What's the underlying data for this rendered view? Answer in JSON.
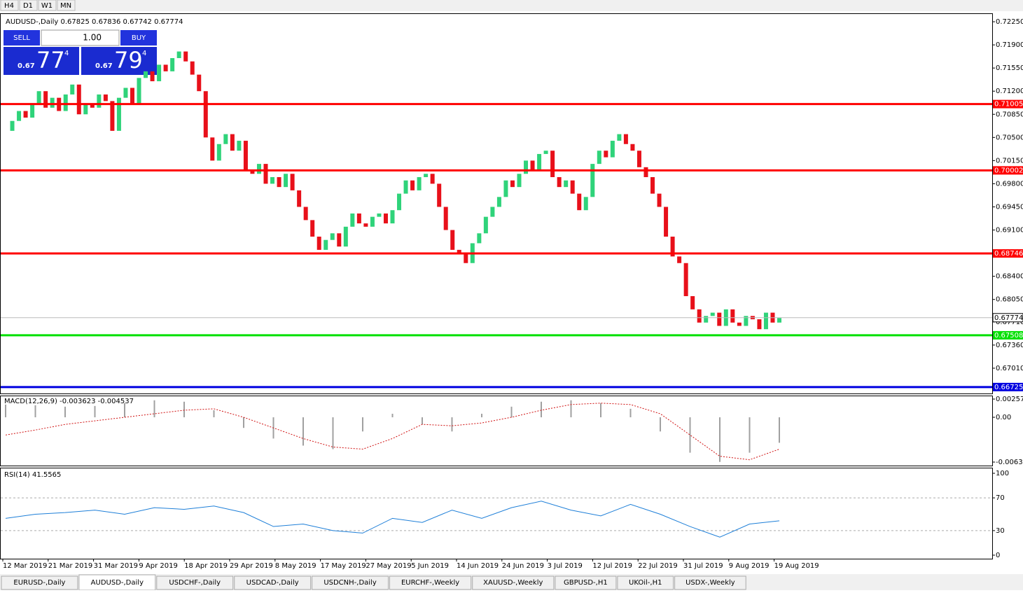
{
  "toolbar": {
    "timeframes": [
      "H4",
      "D1",
      "W1",
      "MN"
    ]
  },
  "trade_panel": {
    "sell": "SELL",
    "buy": "BUY",
    "lots": "1.00",
    "sell_big": "0.67",
    "sell_pips": "77",
    "sell_frac": "4",
    "buy_big": "0.67",
    "buy_pips": "79",
    "buy_frac": "4"
  },
  "chart_data": [
    {
      "type": "candlestick",
      "title": "AUDUSD-,Daily 0.67825 0.67836 0.67742 0.67774",
      "bull_color": "#2fd37a",
      "bear_color": "#e8101a",
      "close": [
        0.706,
        0.7075,
        0.709,
        0.708,
        0.71,
        0.712,
        0.7095,
        0.711,
        0.709,
        0.7115,
        0.713,
        0.7085,
        0.71,
        0.7095,
        0.7115,
        0.7105,
        0.706,
        0.711,
        0.7125,
        0.71,
        0.714,
        0.715,
        0.7135,
        0.716,
        0.715,
        0.717,
        0.718,
        0.7165,
        0.7145,
        0.712,
        0.705,
        0.7015,
        0.704,
        0.7055,
        0.703,
        0.7045,
        0.7,
        0.6995,
        0.701,
        0.698,
        0.699,
        0.6975,
        0.6995,
        0.697,
        0.6945,
        0.6925,
        0.69,
        0.688,
        0.6895,
        0.6905,
        0.6885,
        0.6915,
        0.6935,
        0.692,
        0.6915,
        0.693,
        0.6935,
        0.692,
        0.694,
        0.6965,
        0.6985,
        0.697,
        0.699,
        0.6995,
        0.698,
        0.6945,
        0.691,
        0.688,
        0.6875,
        0.686,
        0.689,
        0.6905,
        0.693,
        0.6945,
        0.696,
        0.6985,
        0.6975,
        0.6995,
        0.7015,
        0.7,
        0.7025,
        0.703,
        0.699,
        0.6975,
        0.6985,
        0.6965,
        0.694,
        0.696,
        0.701,
        0.703,
        0.702,
        0.7045,
        0.7055,
        0.704,
        0.703,
        0.7005,
        0.699,
        0.6965,
        0.6945,
        0.69,
        0.687,
        0.686,
        0.681,
        0.679,
        0.677,
        0.678,
        0.6785,
        0.6765,
        0.679,
        0.677,
        0.6765,
        0.678,
        0.6775,
        0.676,
        0.6785,
        0.677,
        0.6777
      ],
      "levels": [
        {
          "value": 0.71005,
          "label": "0.71005",
          "color": "#ff0000"
        },
        {
          "value": 0.70002,
          "label": "0.70002",
          "color": "#ff0000"
        },
        {
          "value": 0.68746,
          "label": "0.68746",
          "color": "#ff0000"
        },
        {
          "value": 0.67508,
          "label": "0.67508",
          "color": "#00e000"
        },
        {
          "value": 0.66725,
          "label": "0.66725",
          "color": "#0000e0"
        }
      ],
      "current_price": {
        "value": 0.67774,
        "label": "0.67774"
      },
      "ylim": [
        0.66628,
        0.72367
      ],
      "yticks": [
        {
          "value": 0.7225,
          "label": "0.72250"
        },
        {
          "value": 0.719,
          "label": "0.71900"
        },
        {
          "value": 0.7155,
          "label": "0.71550"
        },
        {
          "value": 0.712,
          "label": "0.71200"
        },
        {
          "value": 0.7085,
          "label": "0.70850"
        },
        {
          "value": 0.705,
          "label": "0.70500"
        },
        {
          "value": 0.7015,
          "label": "0.70150"
        },
        {
          "value": 0.698,
          "label": "0.69800"
        },
        {
          "value": 0.6945,
          "label": "0.69450"
        },
        {
          "value": 0.691,
          "label": "0.69100"
        },
        {
          "value": 0.684,
          "label": "0.68400"
        },
        {
          "value": 0.6805,
          "label": "0.68050"
        },
        {
          "value": 0.6771,
          "label": "0.67710"
        },
        {
          "value": 0.6736,
          "label": "0.67360"
        },
        {
          "value": 0.6701,
          "label": "0.67010"
        }
      ],
      "date_labels": [
        "12 Mar 2019",
        "21 Mar 2019",
        "31 Mar 2019",
        "9 Apr 2019",
        "18 Apr 2019",
        "29 Apr 2019",
        "8 May 2019",
        "17 May 2019",
        "27 May 2019",
        "5 Jun 2019",
        "14 Jun 2019",
        "24 Jun 2019",
        "3 Jul 2019",
        "12 Jul 2019",
        "22 Jul 2019",
        "31 Jul 2019",
        "9 Aug 2019",
        "19 Aug 2019"
      ]
    },
    {
      "type": "macd",
      "title": "MACD(12,26,9) -0.003623 -0.004537",
      "hist_color": "#a0a0a0",
      "signal_color": "#d01010",
      "histogram": [
        0.0018,
        0.0017,
        0.0015,
        0.0016,
        0.002,
        0.0024,
        0.0022,
        0.001,
        -0.0015,
        -0.003,
        -0.004,
        -0.0045,
        -0.002,
        0.0005,
        -0.001,
        -0.002,
        0.0005,
        0.0015,
        0.0022,
        0.0024,
        0.002,
        0.0012,
        -0.002,
        -0.005,
        -0.0063,
        -0.005,
        -0.0036
      ],
      "signal": [
        -0.0025,
        -0.0018,
        -0.001,
        -0.0005,
        0,
        0.0005,
        0.001,
        0.0012,
        0,
        -0.0015,
        -0.003,
        -0.0042,
        -0.0045,
        -0.003,
        -0.001,
        -0.0012,
        -0.0008,
        0,
        0.001,
        0.0018,
        0.002,
        0.0018,
        0.0005,
        -0.0025,
        -0.0055,
        -0.006,
        -0.0045
      ],
      "ylim": [
        -0.00692,
        0.00297
      ],
      "yticks": [
        0.002574,
        {
          "value": 0,
          "label": "0.00"
        },
        -0.006326
      ]
    },
    {
      "type": "rsi",
      "title": "RSI(14) 41.5565",
      "color": "#1e7fd8",
      "values": [
        45,
        50,
        52,
        55,
        50,
        58,
        56,
        60,
        52,
        35,
        38,
        30,
        27,
        45,
        40,
        55,
        45,
        58,
        66,
        55,
        48,
        62,
        50,
        35,
        22,
        38,
        42
      ],
      "ylim": [
        -4.3,
        106
      ],
      "yticks": [
        100,
        70,
        30,
        0
      ],
      "levels": [
        70,
        30
      ]
    }
  ],
  "tabs": [
    "EURUSD-,Daily",
    "AUDUSD-,Daily",
    "USDCHF-,Daily",
    "USDCAD-,Daily",
    "USDCNH-,Daily",
    "EURCHF-,Weekly",
    "XAUUSD-,Weekly",
    "GBPUSD-,H1",
    "UKOil-,H1",
    "USDX-,Weekly"
  ],
  "active_tab": 1
}
